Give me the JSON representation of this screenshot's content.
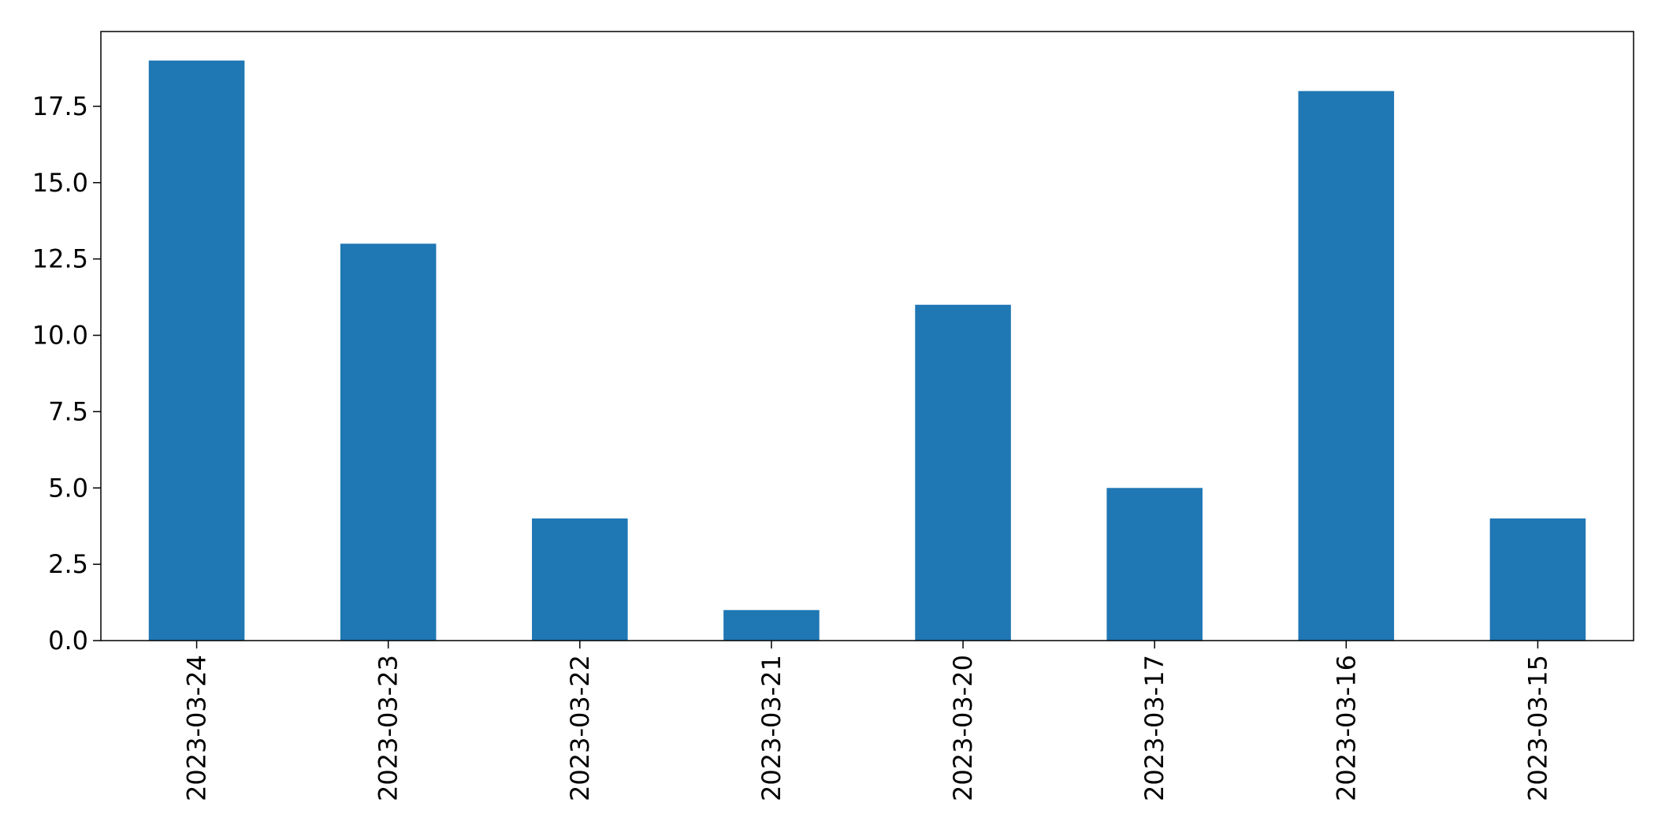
{
  "chart_data": {
    "type": "bar",
    "title": "",
    "xlabel": "",
    "ylabel": "",
    "categories": [
      "2023-03-24",
      "2023-03-23",
      "2023-03-22",
      "2023-03-21",
      "2023-03-20",
      "2023-03-17",
      "2023-03-16",
      "2023-03-15"
    ],
    "values": [
      19,
      13,
      4,
      1,
      11,
      5,
      18,
      4
    ],
    "ylim": [
      0,
      19.95
    ],
    "yticks": [
      "0.0",
      "2.5",
      "5.0",
      "7.5",
      "10.0",
      "12.5",
      "15.0",
      "17.5"
    ],
    "grid": false,
    "legend": "none",
    "colors": {
      "bar": "#1f77b4",
      "axis": "#000000",
      "background": "#ffffff"
    }
  }
}
